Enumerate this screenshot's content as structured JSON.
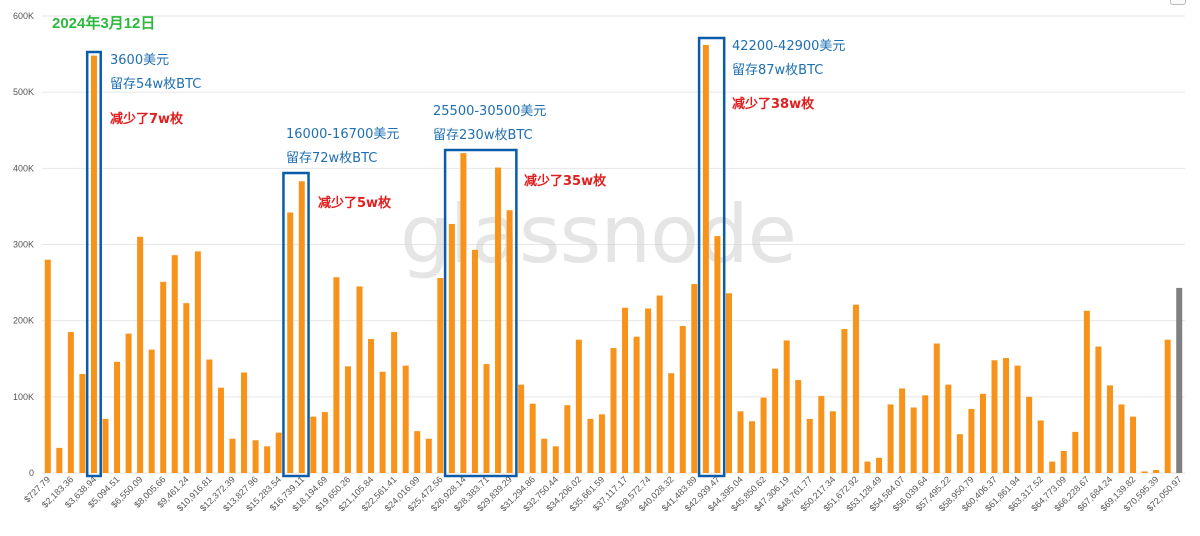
{
  "date_label": "2024年3月12日",
  "watermark": "glassnode",
  "colors": {
    "bar": "#f7931a",
    "bar_last": "#808080",
    "box": "#0a5ca8",
    "annotation_blue": "#1f6fb2",
    "annotation_red": "#e02020",
    "grid": "#e6e6e6",
    "axis_text": "#555555",
    "date": "#2db83d"
  },
  "chart_data": {
    "type": "bar",
    "ylim": [
      0,
      600000
    ],
    "yticks": [
      {
        "value": 0,
        "label": "0"
      },
      {
        "value": 100000,
        "label": "100K"
      },
      {
        "value": 200000,
        "label": "200K"
      },
      {
        "value": 300000,
        "label": "300K"
      },
      {
        "value": 400000,
        "label": "400K"
      },
      {
        "value": 500000,
        "label": "500K"
      },
      {
        "value": 600000,
        "label": "600K"
      }
    ],
    "xtick_labels": [
      "$727.79",
      "$2,183.36",
      "$3,638.94",
      "$5,094.51",
      "$6,550.09",
      "$8,005.66",
      "$9,461.24",
      "$10,916.81",
      "$12,372.39",
      "$13,827.96",
      "$15,283.54",
      "$16,739.11",
      "$18,194.69",
      "$19,650.26",
      "$21,105.84",
      "$22,561.41",
      "$24,016.99",
      "$25,472.56",
      "$26,928.14",
      "$28,383.71",
      "$29,839.29",
      "$31,294.86",
      "$32,750.44",
      "$34,206.02",
      "$35,661.59",
      "$37,117.17",
      "$38,572.74",
      "$40,028.32",
      "$41,483.89",
      "$42,939.47",
      "$44,395.04",
      "$45,850.62",
      "$47,306.19",
      "$48,761.77",
      "$50,217.34",
      "$51,672.92",
      "$53,128.49",
      "$54,584.07",
      "$56,039.64",
      "$57,495.22",
      "$58,950.79",
      "$60,406.37",
      "$61,861.94",
      "$63,317.52",
      "$64,773.09",
      "$66,228.67",
      "$67,684.24",
      "$69,139.82",
      "$70,595.39",
      "$72,050.97"
    ],
    "values": [
      280000,
      33000,
      185000,
      130000,
      548000,
      71000,
      146000,
      183000,
      310000,
      162000,
      251000,
      286000,
      223000,
      291000,
      149000,
      112000,
      45000,
      132000,
      43000,
      35000,
      53000,
      342000,
      383000,
      74000,
      80000,
      257000,
      140000,
      245000,
      176000,
      133000,
      185000,
      141000,
      55000,
      45000,
      256000,
      327000,
      420000,
      293000,
      143000,
      401000,
      345000,
      116000,
      91000,
      45000,
      35000,
      89000,
      175000,
      71000,
      77000,
      164000,
      217000,
      179000,
      216000,
      233000,
      131000,
      193000,
      248000,
      562000,
      311000,
      236000,
      81000,
      68000,
      99000,
      137000,
      174000,
      122000,
      71000,
      101000,
      81000,
      189000,
      221000,
      15000,
      20000,
      90000,
      111000,
      86000,
      102000,
      170000,
      116000,
      51000,
      84000,
      104000,
      148000,
      151000,
      141000,
      100000,
      69000,
      15000,
      29000,
      54000,
      213000,
      166000,
      115000,
      90000,
      74000,
      2000,
      4000,
      175000,
      243000
    ],
    "last_bar_gray": true
  },
  "annotations": [
    {
      "range_label": "3600美元",
      "remain_label": "留存54w枚BTC",
      "reduce_label": "减少了7w枚"
    },
    {
      "range_label": "16000-16700美元",
      "remain_label": "留存72w枚BTC",
      "reduce_label": "减少了5w枚"
    },
    {
      "range_label": "25500-30500美元",
      "remain_label": "留存230w枚BTC",
      "reduce_label": "减少了35w枚"
    },
    {
      "range_label": "42200-42900美元",
      "remain_label": "留存87w枚BTC",
      "reduce_label": "减少了38w枚"
    }
  ]
}
